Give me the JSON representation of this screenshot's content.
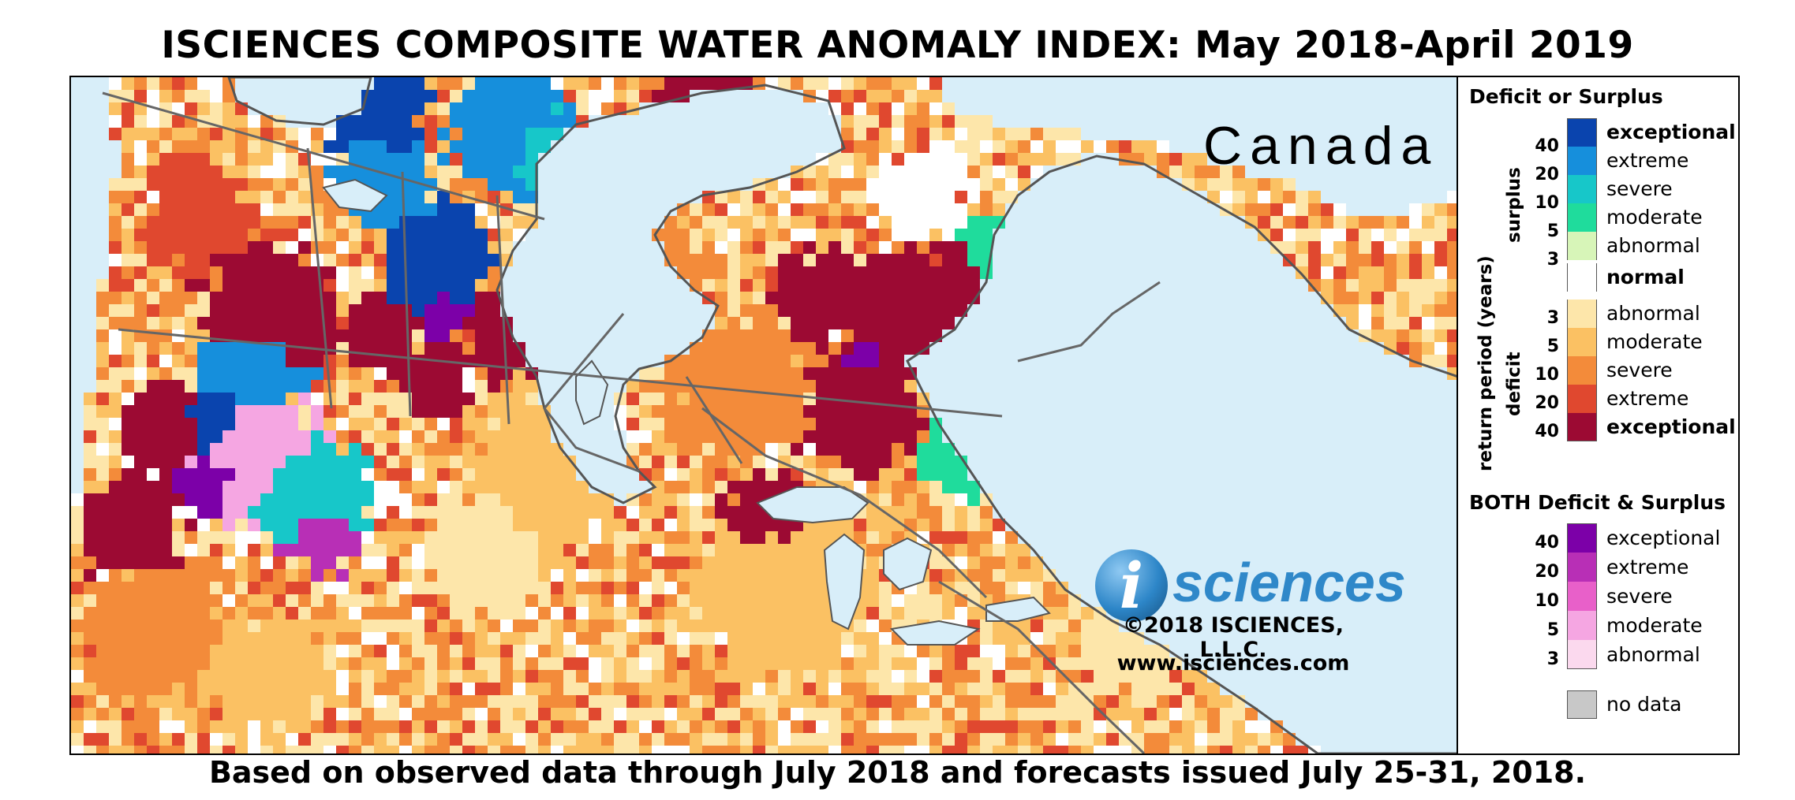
{
  "title": "ISCIENCES COMPOSITE WATER ANOMALY INDEX: May 2018-April 2019",
  "footer": "Based on observed data through July 2018 and forecasts issued July 25-31, 2018.",
  "map": {
    "region_label": "Canada",
    "logo_letter": "i",
    "logo_word": "sciences",
    "copyright": "©2018 ISCIENCES, L.L.C.",
    "url": "www.isciences.com",
    "colors": {
      "water": "#d8eef9",
      "exceptional_deficit": "#9c0a33",
      "extreme_deficit": "#e0482f",
      "severe_deficit": "#f38b3a",
      "moderate_deficit": "#fbc163",
      "abnormal_deficit": "#fde6aa",
      "normal": "#ffffff",
      "abnormal_surplus": "#d7f5b8",
      "moderate_surplus": "#1fdc9c",
      "severe_surplus": "#17c7c9",
      "extreme_surplus": "#168fdc",
      "exceptional_surplus": "#0a44ae",
      "both_exceptional": "#7c00a8",
      "both_extreme": "#b82fb6",
      "both_severe": "#e860c9",
      "both_moderate": "#f5a6e2",
      "both_abnormal": "#fbd9ee",
      "no_data": "#c8c8c8"
    }
  },
  "legend": {
    "deficit_surplus": {
      "heading": "Deficit or Surplus",
      "axis_label": "return period (years)",
      "surplus_label": "surplus",
      "deficit_label": "deficit",
      "items": [
        {
          "label": "exceptional",
          "color": "#0a44ae",
          "bold": true
        },
        {
          "label": "extreme",
          "color": "#168fdc",
          "bold": false
        },
        {
          "label": "severe",
          "color": "#17c7c9",
          "bold": false
        },
        {
          "label": "moderate",
          "color": "#1fdc9c",
          "bold": false
        },
        {
          "label": "abnormal",
          "color": "#d7f5b8",
          "bold": false
        },
        {
          "label": "normal",
          "color": "#ffffff",
          "bold": true
        },
        {
          "label": "abnormal",
          "color": "#fde6aa",
          "bold": false
        },
        {
          "label": "moderate",
          "color": "#fbc163",
          "bold": false
        },
        {
          "label": "severe",
          "color": "#f38b3a",
          "bold": false
        },
        {
          "label": "extreme",
          "color": "#e0482f",
          "bold": false
        },
        {
          "label": "exceptional",
          "color": "#9c0a33",
          "bold": true
        }
      ],
      "surplus_ticks": [
        "40",
        "20",
        "10",
        "5",
        "3"
      ],
      "deficit_ticks": [
        "3",
        "5",
        "10",
        "20",
        "40"
      ]
    },
    "both": {
      "heading": "BOTH Deficit & Surplus",
      "items": [
        {
          "label": "exceptional",
          "color": "#7c00a8"
        },
        {
          "label": "extreme",
          "color": "#b82fb6"
        },
        {
          "label": "severe",
          "color": "#e860c9"
        },
        {
          "label": "moderate",
          "color": "#f5a6e2"
        },
        {
          "label": "abnormal",
          "color": "#fbd9ee"
        }
      ],
      "ticks": [
        "40",
        "20",
        "10",
        "5",
        "3"
      ]
    },
    "no_data": {
      "label": "no data",
      "color": "#c8c8c8"
    }
  }
}
